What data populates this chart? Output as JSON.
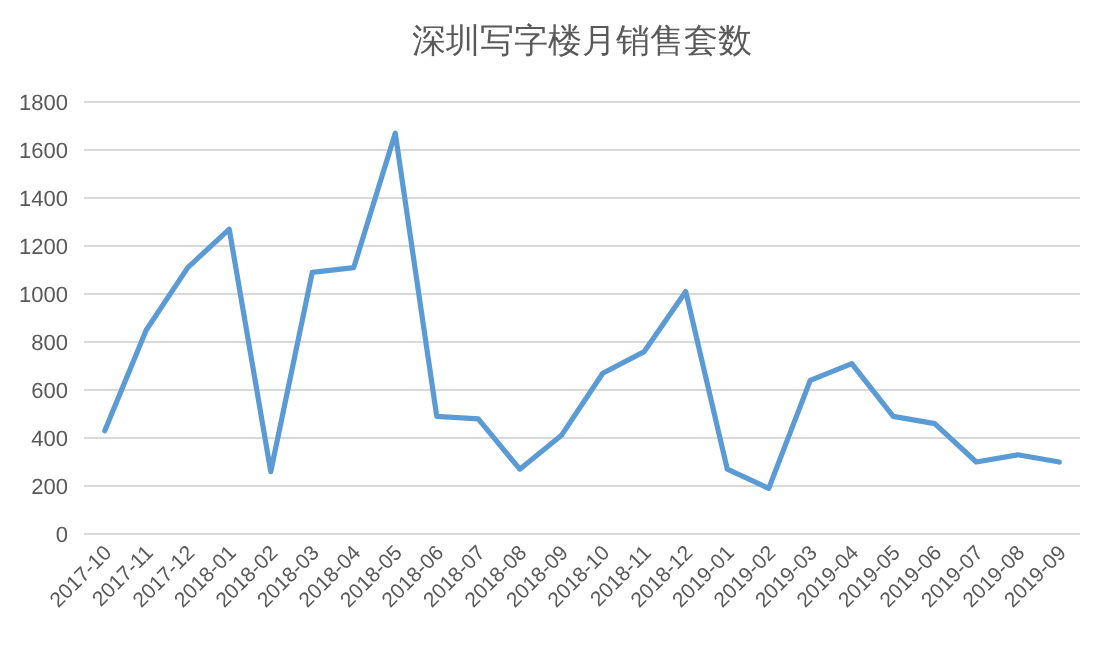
{
  "chart_data": {
    "type": "line",
    "title": "深圳写字楼月销售套数",
    "categories": [
      "2017-10",
      "2017-11",
      "2017-12",
      "2018-01",
      "2018-02",
      "2018-03",
      "2018-04",
      "2018-05",
      "2018-06",
      "2018-07",
      "2018-08",
      "2018-09",
      "2018-10",
      "2018-11",
      "2018-12",
      "2019-01",
      "2019-02",
      "2019-03",
      "2019-04",
      "2019-05",
      "2019-06",
      "2019-07",
      "2019-08",
      "2019-09"
    ],
    "series": [
      {
        "color": "#5b9bd5",
        "values": [
          430,
          850,
          1110,
          1270,
          260,
          1090,
          1110,
          1670,
          490,
          480,
          270,
          410,
          670,
          760,
          1010,
          270,
          190,
          640,
          710,
          490,
          460,
          300,
          330,
          300
        ]
      }
    ],
    "ylim": [
      0,
      1800
    ],
    "yticks": [
      0,
      200,
      400,
      600,
      800,
      1000,
      1200,
      1400,
      1600,
      1800
    ],
    "grid": "y",
    "marker": "none",
    "line_style": "solid"
  }
}
